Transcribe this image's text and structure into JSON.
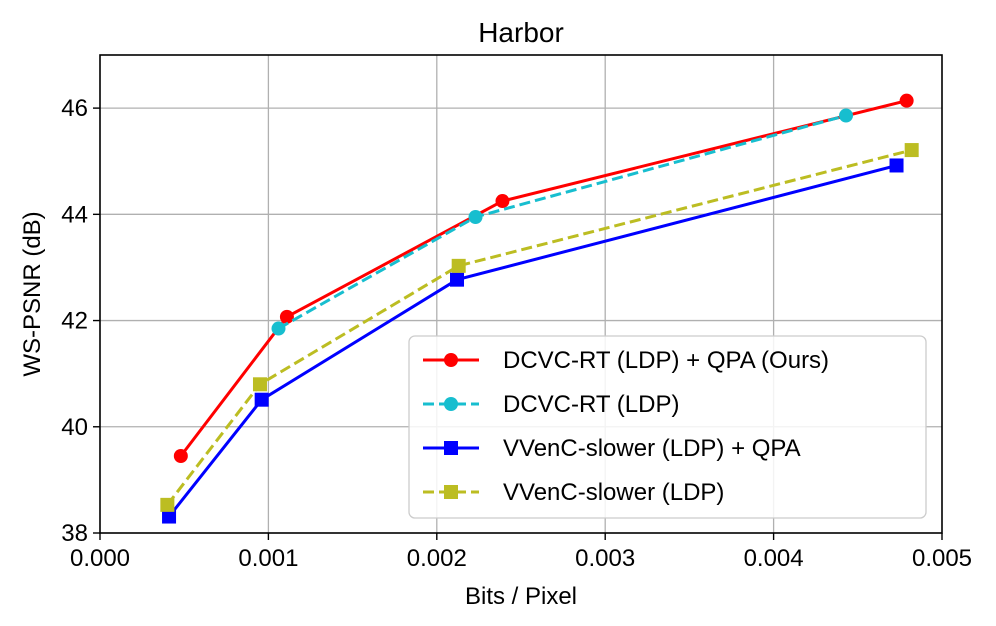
{
  "chart_data": {
    "type": "line",
    "title": "Harbor",
    "xlabel": "Bits / Pixel",
    "ylabel": "WS-PSNR (dB)",
    "xlim": [
      0.0,
      0.005
    ],
    "ylim": [
      38,
      47
    ],
    "xticks": [
      0.0,
      0.001,
      0.002,
      0.003,
      0.004,
      0.005
    ],
    "xtick_labels": [
      "0.000",
      "0.001",
      "0.002",
      "0.003",
      "0.004",
      "0.005"
    ],
    "yticks": [
      38,
      40,
      42,
      44,
      46
    ],
    "ytick_labels": [
      "38",
      "40",
      "42",
      "44",
      "46"
    ],
    "grid": true,
    "legend_position": "lower-right",
    "series": [
      {
        "name": "DCVC-RT (LDP) + QPA (Ours)",
        "color": "#ff0000",
        "linestyle": "solid",
        "marker": "circle",
        "x": [
          0.00048,
          0.00111,
          0.00239,
          0.00479
        ],
        "y": [
          39.45,
          42.07,
          44.25,
          46.14
        ]
      },
      {
        "name": "DCVC-RT (LDP)",
        "color": "#17becf",
        "linestyle": "dashed",
        "marker": "circle",
        "x": [
          0.00106,
          0.00223,
          0.00443
        ],
        "y": [
          41.85,
          43.95,
          45.86
        ]
      },
      {
        "name": "VVenC-slower (LDP) + QPA",
        "color": "#0000ff",
        "linestyle": "solid",
        "marker": "square",
        "x": [
          0.00041,
          0.00096,
          0.00212,
          0.00473
        ],
        "y": [
          38.31,
          40.51,
          42.77,
          44.92
        ]
      },
      {
        "name": "VVenC-slower (LDP)",
        "color": "#bcbd22",
        "linestyle": "dashed",
        "marker": "square",
        "x": [
          0.0004,
          0.00095,
          0.00213,
          0.00482
        ],
        "y": [
          38.53,
          40.8,
          43.03,
          45.21
        ]
      }
    ]
  }
}
